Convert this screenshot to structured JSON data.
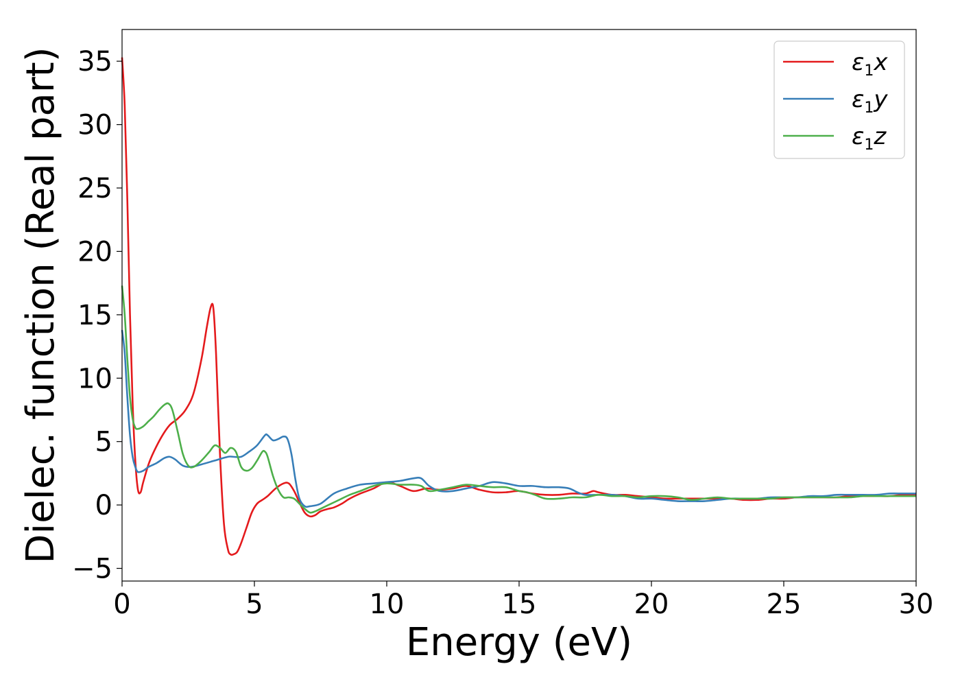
{
  "chart_data": {
    "type": "line",
    "title": "",
    "xlabel": "Energy (eV)",
    "ylabel": "Dielec. function (Real part)",
    "xlim": [
      0,
      30
    ],
    "ylim": [
      -6,
      37.5
    ],
    "xticks": [
      0,
      5,
      10,
      15,
      20,
      25,
      30
    ],
    "yticks": [
      -5,
      0,
      5,
      10,
      15,
      20,
      25,
      30,
      35
    ],
    "ytick_labels": [
      "−5",
      "0",
      "5",
      "10",
      "15",
      "20",
      "25",
      "30",
      "35"
    ],
    "grid": false,
    "legend_position": "top-right",
    "series": [
      {
        "name": "ε₁x",
        "legend": {
          "base": "ε",
          "sub": "1",
          "var": "x"
        },
        "color": "#e41a1c",
        "x": [
          0.0,
          0.1,
          0.2,
          0.3,
          0.4,
          0.5,
          0.6,
          0.7,
          0.8,
          1.0,
          1.2,
          1.5,
          1.8,
          2.1,
          2.4,
          2.7,
          3.0,
          3.2,
          3.35,
          3.45,
          3.55,
          3.7,
          3.85,
          4.0,
          4.1,
          4.2,
          4.35,
          4.5,
          4.7,
          4.9,
          5.1,
          5.3,
          5.5,
          5.8,
          6.1,
          6.3,
          6.5,
          6.7,
          6.9,
          7.1,
          7.3,
          7.5,
          7.8,
          8.0,
          8.3,
          8.6,
          9.0,
          9.5,
          10.0,
          10.5,
          11.0,
          11.5,
          12.0,
          12.5,
          13.0,
          13.5,
          14.0,
          14.5,
          15.0,
          15.5,
          16.0,
          16.5,
          17.0,
          17.5,
          17.8,
          18.0,
          18.5,
          19.0,
          19.5,
          20.0,
          20.5,
          21.0,
          21.5,
          22.0,
          22.5,
          23.0,
          23.5,
          24.0,
          24.5,
          25.0,
          25.5,
          26.0,
          26.5,
          27.0,
          27.5,
          28.0,
          28.5,
          29.0,
          29.5,
          30.0
        ],
        "y": [
          35.3,
          31.5,
          24.0,
          15.0,
          8.0,
          3.5,
          1.2,
          1.0,
          1.8,
          3.2,
          4.2,
          5.4,
          6.3,
          6.8,
          7.5,
          8.8,
          11.5,
          14.0,
          15.6,
          15.5,
          12.0,
          4.0,
          -1.5,
          -3.5,
          -3.9,
          -3.9,
          -3.7,
          -3.0,
          -1.8,
          -0.6,
          0.1,
          0.4,
          0.7,
          1.3,
          1.7,
          1.7,
          1.1,
          0.2,
          -0.6,
          -0.9,
          -0.8,
          -0.5,
          -0.3,
          -0.2,
          0.1,
          0.5,
          0.9,
          1.3,
          1.8,
          1.5,
          1.1,
          1.3,
          1.2,
          1.3,
          1.5,
          1.2,
          1.0,
          1.0,
          1.1,
          0.9,
          0.8,
          0.8,
          0.9,
          0.9,
          1.1,
          1.0,
          0.8,
          0.8,
          0.7,
          0.6,
          0.5,
          0.5,
          0.5,
          0.5,
          0.5,
          0.5,
          0.4,
          0.4,
          0.5,
          0.5,
          0.6,
          0.6,
          0.6,
          0.6,
          0.7,
          0.7,
          0.7,
          0.7,
          0.8,
          0.8
        ]
      },
      {
        "name": "ε₁y",
        "legend": {
          "base": "ε",
          "sub": "1",
          "var": "y"
        },
        "color": "#377eb8",
        "x": [
          0.0,
          0.1,
          0.2,
          0.3,
          0.4,
          0.5,
          0.6,
          0.8,
          1.0,
          1.3,
          1.6,
          1.8,
          2.0,
          2.3,
          2.6,
          3.0,
          3.5,
          4.0,
          4.2,
          4.5,
          4.8,
          5.1,
          5.4,
          5.5,
          5.7,
          5.9,
          6.1,
          6.25,
          6.4,
          6.55,
          6.7,
          6.9,
          7.1,
          7.5,
          8.0,
          8.5,
          9.0,
          9.5,
          10.0,
          10.5,
          11.0,
          11.3,
          11.6,
          12.0,
          12.5,
          13.0,
          13.5,
          14.0,
          14.5,
          15.0,
          15.5,
          16.0,
          16.5,
          16.9,
          17.2,
          17.5,
          18.0,
          18.5,
          19.0,
          19.5,
          20.0,
          20.5,
          21.0,
          21.5,
          22.0,
          22.5,
          23.0,
          23.5,
          24.0,
          24.5,
          25.0,
          25.5,
          26.0,
          26.5,
          27.0,
          27.5,
          28.0,
          28.5,
          29.0,
          29.5,
          30.0
        ],
        "y": [
          13.8,
          12.0,
          8.5,
          5.5,
          3.8,
          3.0,
          2.6,
          2.7,
          3.0,
          3.3,
          3.7,
          3.8,
          3.6,
          3.1,
          3.0,
          3.2,
          3.5,
          3.8,
          3.8,
          3.8,
          4.2,
          4.7,
          5.5,
          5.5,
          5.1,
          5.2,
          5.4,
          5.2,
          4.0,
          2.0,
          0.5,
          -0.1,
          -0.1,
          0.1,
          0.9,
          1.3,
          1.6,
          1.7,
          1.8,
          1.9,
          2.1,
          2.1,
          1.5,
          1.1,
          1.1,
          1.3,
          1.5,
          1.8,
          1.7,
          1.5,
          1.5,
          1.4,
          1.4,
          1.3,
          1.0,
          0.8,
          0.8,
          0.8,
          0.7,
          0.5,
          0.5,
          0.4,
          0.3,
          0.3,
          0.3,
          0.4,
          0.5,
          0.5,
          0.5,
          0.6,
          0.6,
          0.6,
          0.7,
          0.7,
          0.8,
          0.8,
          0.8,
          0.8,
          0.9,
          0.9,
          0.9
        ]
      },
      {
        "name": "ε₁z",
        "legend": {
          "base": "ε",
          "sub": "1",
          "var": "z"
        },
        "color": "#4daf4a",
        "x": [
          0.0,
          0.1,
          0.2,
          0.3,
          0.4,
          0.5,
          0.6,
          0.8,
          1.0,
          1.2,
          1.4,
          1.6,
          1.75,
          1.9,
          2.1,
          2.3,
          2.5,
          2.7,
          3.0,
          3.3,
          3.5,
          3.7,
          3.9,
          4.1,
          4.3,
          4.5,
          4.7,
          4.9,
          5.1,
          5.3,
          5.4,
          5.5,
          5.7,
          5.9,
          6.1,
          6.3,
          6.5,
          6.7,
          6.9,
          7.1,
          7.3,
          7.5,
          7.8,
          8.2,
          8.6,
          9.0,
          9.5,
          10.0,
          10.5,
          11.0,
          11.3,
          11.6,
          12.0,
          12.5,
          13.0,
          13.5,
          14.0,
          14.5,
          15.0,
          15.3,
          15.6,
          16.0,
          16.5,
          17.0,
          17.5,
          18.0,
          18.5,
          19.0,
          19.5,
          20.0,
          20.5,
          21.0,
          21.5,
          22.0,
          22.5,
          23.0,
          23.5,
          24.0,
          24.5,
          25.0,
          25.5,
          26.0,
          26.5,
          27.0,
          27.5,
          28.0,
          28.5,
          29.0,
          29.5,
          30.0
        ],
        "y": [
          17.3,
          15.0,
          11.5,
          8.5,
          6.8,
          6.1,
          6.0,
          6.2,
          6.6,
          7.0,
          7.5,
          7.9,
          8.0,
          7.5,
          5.8,
          4.0,
          3.1,
          3.0,
          3.5,
          4.2,
          4.7,
          4.5,
          4.1,
          4.5,
          4.2,
          3.0,
          2.7,
          2.9,
          3.5,
          4.2,
          4.2,
          3.8,
          2.3,
          1.2,
          0.6,
          0.6,
          0.5,
          0.1,
          -0.3,
          -0.6,
          -0.5,
          -0.3,
          0.0,
          0.4,
          0.8,
          1.1,
          1.5,
          1.7,
          1.6,
          1.6,
          1.5,
          1.1,
          1.2,
          1.4,
          1.6,
          1.5,
          1.4,
          1.4,
          1.1,
          1.0,
          0.8,
          0.5,
          0.5,
          0.6,
          0.6,
          0.8,
          0.7,
          0.7,
          0.6,
          0.7,
          0.7,
          0.6,
          0.4,
          0.5,
          0.6,
          0.5,
          0.5,
          0.5,
          0.5,
          0.6,
          0.6,
          0.6,
          0.6,
          0.6,
          0.6,
          0.7,
          0.7,
          0.7,
          0.7,
          0.7
        ]
      }
    ]
  }
}
